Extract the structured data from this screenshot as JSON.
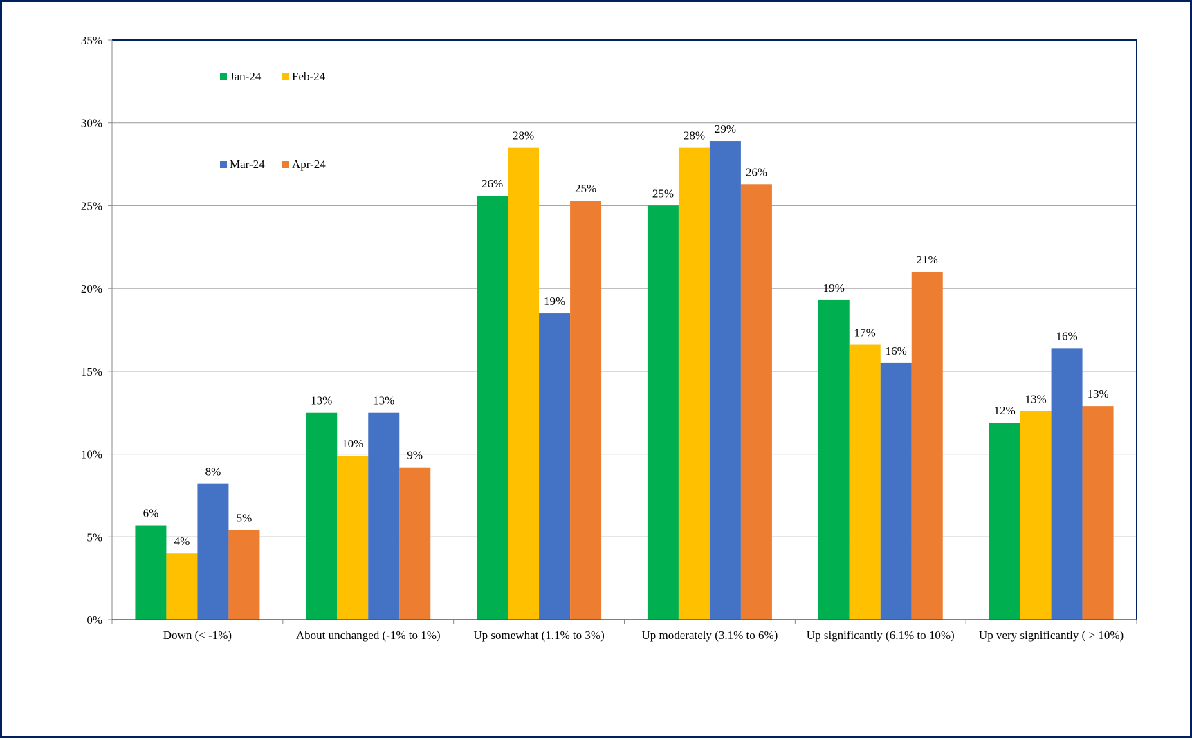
{
  "chart_data": {
    "type": "bar",
    "title": "",
    "xlabel": "",
    "ylabel": "",
    "ylim": [
      0,
      35
    ],
    "yticks": [
      "0%",
      "5%",
      "10%",
      "15%",
      "20%",
      "25%",
      "30%",
      "35%"
    ],
    "ytick_values": [
      0,
      5,
      10,
      15,
      20,
      25,
      30,
      35
    ],
    "grid": true,
    "legend": "top-left",
    "categories": [
      "Down (< -1%)",
      "About unchanged (-1% to 1%)",
      "Up somewhat (1.1% to 3%)",
      "Up moderately (3.1% to 6%)",
      "Up significantly (6.1% to 10%)",
      "Up very significantly ( > 10%)"
    ],
    "series": [
      {
        "name": "Jan-24",
        "color": "#00B050",
        "values": [
          5.7,
          12.5,
          25.6,
          25.0,
          19.3,
          11.9
        ],
        "labels": [
          "6%",
          "13%",
          "26%",
          "25%",
          "19%",
          "12%"
        ]
      },
      {
        "name": "Feb-24",
        "color": "#FFC000",
        "values": [
          4.0,
          9.9,
          28.5,
          28.5,
          16.6,
          12.6
        ],
        "labels": [
          "4%",
          "10%",
          "28%",
          "28%",
          "17%",
          "13%"
        ]
      },
      {
        "name": "Mar-24",
        "color": "#4472C4",
        "values": [
          8.2,
          12.5,
          18.5,
          28.9,
          15.5,
          16.4
        ],
        "labels": [
          "8%",
          "13%",
          "19%",
          "29%",
          "16%",
          "16%"
        ]
      },
      {
        "name": "Apr-24",
        "color": "#ED7D31",
        "values": [
          5.4,
          9.2,
          25.3,
          26.3,
          21.0,
          12.9
        ],
        "labels": [
          "5%",
          "9%",
          "25%",
          "26%",
          "21%",
          "13%"
        ]
      }
    ]
  }
}
